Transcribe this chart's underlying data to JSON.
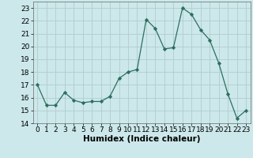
{
  "x": [
    0,
    1,
    2,
    3,
    4,
    5,
    6,
    7,
    8,
    9,
    10,
    11,
    12,
    13,
    14,
    15,
    16,
    17,
    18,
    19,
    20,
    21,
    22,
    23
  ],
  "y": [
    17.0,
    15.4,
    15.4,
    16.4,
    15.8,
    15.6,
    15.7,
    15.7,
    16.1,
    17.5,
    18.0,
    18.2,
    22.1,
    21.4,
    19.8,
    19.9,
    23.0,
    22.5,
    21.3,
    20.5,
    18.7,
    16.3,
    14.4,
    15.0
  ],
  "line_color": "#2d6e5e",
  "marker": "D",
  "marker_size": 2.2,
  "bg_color": "#cce8ea",
  "grid_color": "#b0cccc",
  "xlabel": "Humidex (Indice chaleur)",
  "xlim": [
    -0.5,
    23.5
  ],
  "ylim": [
    14,
    23.5
  ],
  "yticks": [
    14,
    15,
    16,
    17,
    18,
    19,
    20,
    21,
    22,
    23
  ],
  "xticks": [
    0,
    1,
    2,
    3,
    4,
    5,
    6,
    7,
    8,
    9,
    10,
    11,
    12,
    13,
    14,
    15,
    16,
    17,
    18,
    19,
    20,
    21,
    22,
    23
  ],
  "xlabel_fontsize": 7.5,
  "tick_fontsize": 6.5
}
